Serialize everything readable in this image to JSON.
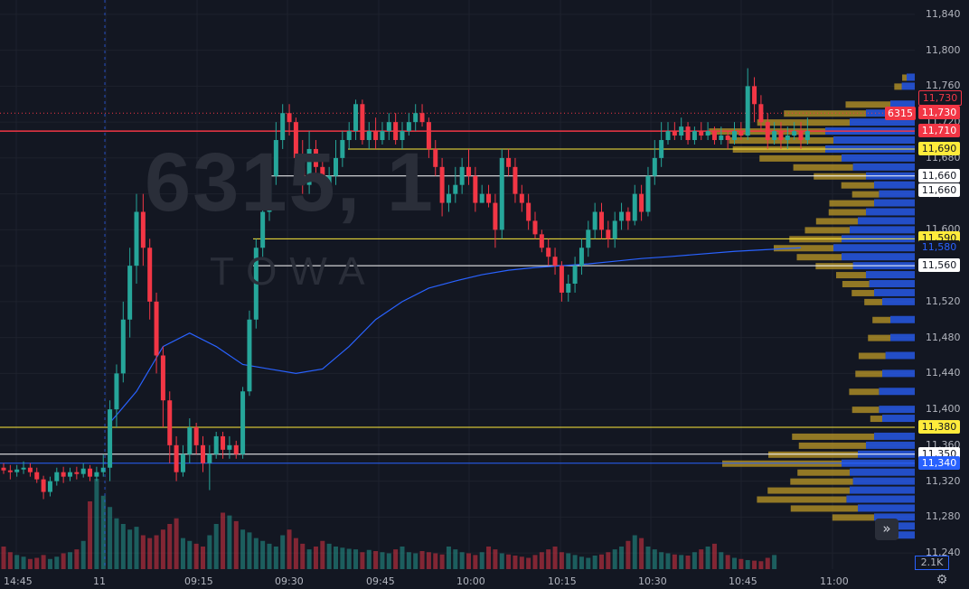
{
  "watermark": {
    "symbol": "6315, 1",
    "name": "TOWA"
  },
  "price_axis": {
    "ticks": [
      "11,840",
      "11,800",
      "11,760",
      "11,720",
      "11,680",
      "11,640",
      "11,600",
      "11,560",
      "11,520",
      "11,480",
      "11,440",
      "11,400",
      "11,360",
      "11,320",
      "11,280",
      "11,240"
    ]
  },
  "time_axis": {
    "labels": [
      "14:45",
      "11",
      "09:15",
      "09:30",
      "09:45",
      "10:00",
      "10:15",
      "10:30",
      "10:45",
      "11:00"
    ]
  },
  "badges": [
    {
      "text": "11,730",
      "price": 11730,
      "bg": "#131722",
      "fg": "#f23645",
      "border": "#f23645"
    },
    {
      "text": "11,730",
      "price": 11730,
      "bg": "#f23645",
      "fg": "#ffffff"
    },
    {
      "text": "11,710",
      "price": 11710,
      "bg": "#f23645",
      "fg": "#ffffff"
    },
    {
      "text": "11,690",
      "price": 11690,
      "bg": "#ffeb3b",
      "fg": "#131722"
    },
    {
      "text": "11,660",
      "price": 11660,
      "bg": "#ffffff",
      "fg": "#131722"
    },
    {
      "text": "11,660",
      "price": 11660,
      "bg": "#ffffff",
      "fg": "#131722"
    },
    {
      "text": "11,590",
      "price": 11590,
      "bg": "#ffeb3b",
      "fg": "#131722"
    },
    {
      "text": "11,580",
      "price": 11580,
      "bg": "#131722",
      "fg": "#2962ff"
    },
    {
      "text": "11,560",
      "price": 11560,
      "bg": "#ffffff",
      "fg": "#131722"
    },
    {
      "text": "11,380",
      "price": 11380,
      "bg": "#ffeb3b",
      "fg": "#131722"
    },
    {
      "text": "11,350",
      "price": 11350,
      "bg": "#ffffff",
      "fg": "#131722"
    },
    {
      "text": "11,340",
      "price": 11340,
      "bg": "#2962ff",
      "fg": "#ffffff"
    }
  ],
  "last_price_tag": "6315",
  "volume_badge": "2.1K",
  "scroll_button": "»",
  "settings_icon": "gear-icon",
  "chart_data": {
    "type": "candlestick",
    "interval": "1 min",
    "ylim": [
      11222,
      11856
    ],
    "colors": {
      "up": "#26a69a",
      "down": "#f23645",
      "vwap": "#2962ff",
      "level_yellow": "#ffeb3b",
      "level_white": "#ffffff",
      "level_red": "#f23645",
      "level_blue": "#2962ff"
    },
    "levels": [
      {
        "price": 11730,
        "color": "#f23645",
        "style": "dotted"
      },
      {
        "price": 11710,
        "color": "#f23645",
        "style": "solid"
      },
      {
        "price": 11690,
        "color": "#ffeb3b",
        "style": "solid"
      },
      {
        "price": 11660,
        "color": "#ffffff",
        "style": "solid"
      },
      {
        "price": 11590,
        "color": "#ffeb3b",
        "style": "solid"
      },
      {
        "price": 11560,
        "color": "#ffffff",
        "style": "solid"
      },
      {
        "price": 11380,
        "color": "#ffeb3b",
        "style": "solid"
      },
      {
        "price": 11350,
        "color": "#ffffff",
        "style": "solid"
      },
      {
        "price": 11340,
        "color": "#2962ff",
        "style": "solid"
      }
    ],
    "candles": [
      [
        11335,
        11332,
        11340,
        11328
      ],
      [
        11332,
        11330,
        11338,
        11322
      ],
      [
        11330,
        11333,
        11338,
        11325
      ],
      [
        11333,
        11335,
        11342,
        11328
      ],
      [
        11335,
        11330,
        11340,
        11325
      ],
      [
        11330,
        11322,
        11335,
        11318
      ],
      [
        11322,
        11308,
        11326,
        11300
      ],
      [
        11308,
        11320,
        11325,
        11303
      ],
      [
        11320,
        11330,
        11335,
        11315
      ],
      [
        11330,
        11325,
        11336,
        11318
      ],
      [
        11325,
        11330,
        11335,
        11320
      ],
      [
        11330,
        11328,
        11336,
        11322
      ],
      [
        11328,
        11334,
        11340,
        11324
      ],
      [
        11334,
        11325,
        11338,
        11320
      ],
      [
        11325,
        11330,
        11336,
        11320
      ],
      [
        11330,
        11335,
        11350,
        11325
      ],
      [
        11335,
        11400,
        11410,
        11320
      ],
      [
        11400,
        11440,
        11450,
        11380
      ],
      [
        11440,
        11500,
        11520,
        11430
      ],
      [
        11500,
        11560,
        11580,
        11480
      ],
      [
        11560,
        11620,
        11640,
        11540
      ],
      [
        11620,
        11580,
        11640,
        11560
      ],
      [
        11580,
        11520,
        11590,
        11500
      ],
      [
        11520,
        11460,
        11530,
        11440
      ],
      [
        11460,
        11410,
        11470,
        11380
      ],
      [
        11410,
        11360,
        11420,
        11340
      ],
      [
        11360,
        11330,
        11370,
        11320
      ],
      [
        11330,
        11350,
        11360,
        11325
      ],
      [
        11350,
        11380,
        11390,
        11340
      ],
      [
        11380,
        11360,
        11385,
        11350
      ],
      [
        11360,
        11340,
        11370,
        11330
      ],
      [
        11340,
        11350,
        11360,
        11310
      ],
      [
        11350,
        11370,
        11375,
        11345
      ],
      [
        11370,
        11355,
        11375,
        11345
      ],
      [
        11355,
        11360,
        11370,
        11345
      ],
      [
        11360,
        11350,
        11365,
        11345
      ],
      [
        11350,
        11420,
        11425,
        11345
      ],
      [
        11420,
        11500,
        11510,
        11415
      ],
      [
        11500,
        11580,
        11590,
        11490
      ],
      [
        11580,
        11620,
        11630,
        11570
      ],
      [
        11620,
        11660,
        11670,
        11610
      ],
      [
        11660,
        11700,
        11720,
        11650
      ],
      [
        11700,
        11730,
        11740,
        11690
      ],
      [
        11730,
        11720,
        11740,
        11705
      ],
      [
        11720,
        11680,
        11725,
        11660
      ],
      [
        11680,
        11650,
        11700,
        11640
      ],
      [
        11650,
        11690,
        11710,
        11640
      ],
      [
        11690,
        11670,
        11700,
        11660
      ],
      [
        11670,
        11650,
        11680,
        11640
      ],
      [
        11650,
        11660,
        11670,
        11635
      ],
      [
        11660,
        11680,
        11700,
        11650
      ],
      [
        11680,
        11700,
        11710,
        11670
      ],
      [
        11700,
        11710,
        11720,
        11690
      ],
      [
        11710,
        11740,
        11745,
        11700
      ],
      [
        11740,
        11700,
        11745,
        11695
      ],
      [
        11700,
        11710,
        11720,
        11690
      ],
      [
        11710,
        11700,
        11725,
        11690
      ],
      [
        11700,
        11710,
        11720,
        11695
      ],
      [
        11710,
        11720,
        11730,
        11700
      ],
      [
        11720,
        11700,
        11730,
        11695
      ],
      [
        11700,
        11710,
        11720,
        11690
      ],
      [
        11710,
        11720,
        11730,
        11705
      ],
      [
        11720,
        11730,
        11740,
        11710
      ],
      [
        11730,
        11720,
        11740,
        11715
      ],
      [
        11720,
        11690,
        11725,
        11680
      ],
      [
        11690,
        11670,
        11700,
        11660
      ],
      [
        11670,
        11630,
        11680,
        11615
      ],
      [
        11630,
        11640,
        11650,
        11620
      ],
      [
        11640,
        11650,
        11670,
        11630
      ],
      [
        11650,
        11670,
        11680,
        11640
      ],
      [
        11670,
        11660,
        11690,
        11650
      ],
      [
        11660,
        11630,
        11670,
        11620
      ],
      [
        11630,
        11640,
        11650,
        11630
      ],
      [
        11640,
        11630,
        11650,
        11625
      ],
      [
        11630,
        11600,
        11640,
        11580
      ],
      [
        11600,
        11680,
        11690,
        11590
      ],
      [
        11680,
        11670,
        11690,
        11660
      ],
      [
        11670,
        11640,
        11680,
        11630
      ],
      [
        11640,
        11630,
        11650,
        11620
      ],
      [
        11630,
        11610,
        11640,
        11600
      ],
      [
        11610,
        11595,
        11620,
        11590
      ],
      [
        11595,
        11580,
        11600,
        11575
      ],
      [
        11580,
        11570,
        11590,
        11560
      ],
      [
        11570,
        11560,
        11580,
        11550
      ],
      [
        11560,
        11530,
        11565,
        11520
      ],
      [
        11530,
        11540,
        11550,
        11520
      ],
      [
        11540,
        11560,
        11570,
        11530
      ],
      [
        11560,
        11580,
        11590,
        11550
      ],
      [
        11580,
        11600,
        11610,
        11570
      ],
      [
        11600,
        11620,
        11630,
        11590
      ],
      [
        11620,
        11600,
        11630,
        11590
      ],
      [
        11600,
        11590,
        11610,
        11580
      ],
      [
        11590,
        11610,
        11620,
        11580
      ],
      [
        11610,
        11620,
        11630,
        11600
      ],
      [
        11620,
        11610,
        11625,
        11600
      ],
      [
        11610,
        11640,
        11650,
        11605
      ],
      [
        11640,
        11620,
        11650,
        11610
      ],
      [
        11620,
        11660,
        11670,
        11615
      ],
      [
        11660,
        11680,
        11700,
        11650
      ],
      [
        11680,
        11700,
        11720,
        11670
      ]
    ],
    "tail_candles": [
      [
        11700,
        11710,
        11720,
        11695
      ],
      [
        11710,
        11705,
        11720,
        11700
      ],
      [
        11705,
        11715,
        11725,
        11700
      ],
      [
        11715,
        11700,
        11720,
        11695
      ],
      [
        11700,
        11710,
        11715,
        11695
      ],
      [
        11710,
        11705,
        11720,
        11700
      ],
      [
        11705,
        11710,
        11720,
        11700
      ],
      [
        11710,
        11700,
        11715,
        11695
      ],
      [
        11700,
        11705,
        11715,
        11695
      ],
      [
        11705,
        11700,
        11710,
        11690
      ],
      [
        11700,
        11710,
        11720,
        11695
      ],
      [
        11710,
        11705,
        11720,
        11700
      ],
      [
        11705,
        11760,
        11780,
        11700
      ],
      [
        11760,
        11740,
        11770,
        11720
      ],
      [
        11740,
        11720,
        11750,
        11710
      ],
      [
        11720,
        11700,
        11730,
        11690
      ],
      [
        11700,
        11710,
        11720,
        11695
      ],
      [
        11710,
        11700,
        11720,
        11690
      ],
      [
        11700,
        11705,
        11715,
        11690
      ],
      [
        11705,
        11710,
        11720,
        11700
      ],
      [
        11710,
        11700,
        11720,
        11690
      ],
      [
        11700,
        11710,
        11725,
        11695
      ]
    ],
    "vwap": [
      [
        16,
        11385
      ],
      [
        20,
        11420
      ],
      [
        24,
        11470
      ],
      [
        28,
        11485
      ],
      [
        32,
        11470
      ],
      [
        36,
        11450
      ],
      [
        40,
        11445
      ],
      [
        44,
        11440
      ],
      [
        48,
        11445
      ],
      [
        52,
        11470
      ],
      [
        56,
        11500
      ],
      [
        60,
        11520
      ],
      [
        64,
        11535
      ],
      [
        68,
        11543
      ],
      [
        72,
        11550
      ],
      [
        76,
        11555
      ],
      [
        80,
        11558
      ],
      [
        84,
        11560
      ],
      [
        88,
        11562
      ],
      [
        92,
        11565
      ],
      [
        96,
        11568
      ],
      [
        100,
        11570
      ],
      [
        110,
        11576
      ],
      [
        120,
        11580
      ]
    ],
    "volume": [
      40,
      30,
      25,
      22,
      18,
      20,
      25,
      18,
      22,
      28,
      30,
      35,
      50,
      120,
      160,
      130,
      110,
      90,
      80,
      70,
      75,
      60,
      55,
      60,
      70,
      80,
      90,
      55,
      50,
      45,
      40,
      60,
      80,
      100,
      95,
      85,
      70,
      65,
      55,
      50,
      45,
      40,
      60,
      70,
      55,
      45,
      35,
      40,
      50,
      45,
      40,
      38,
      36,
      35,
      30,
      34,
      32,
      30,
      28,
      35,
      40,
      30,
      28,
      32,
      30,
      28,
      26,
      40,
      35,
      30,
      28,
      25,
      30,
      40,
      35,
      28,
      26,
      24,
      22,
      20,
      25,
      30,
      35,
      40,
      30,
      28,
      25,
      22,
      20,
      24,
      26,
      30,
      35,
      40,
      50,
      60,
      55,
      40,
      35,
      30,
      28,
      26,
      25,
      24,
      30,
      35,
      40,
      45,
      30,
      25,
      20,
      18,
      16,
      15,
      14,
      20,
      25
    ],
    "volume_profile": [
      [
        11770,
        0.05,
        0.03
      ],
      [
        11760,
        0.08,
        0.05
      ],
      [
        11740,
        0.15,
        0.3
      ],
      [
        11730,
        0.3,
        0.55
      ],
      [
        11720,
        0.4,
        0.62
      ],
      [
        11710,
        0.55,
        0.78
      ],
      [
        11700,
        0.5,
        0.7
      ],
      [
        11690,
        0.55,
        0.62
      ],
      [
        11680,
        0.45,
        0.55
      ],
      [
        11670,
        0.38,
        0.4
      ],
      [
        11660,
        0.3,
        0.35
      ],
      [
        11650,
        0.25,
        0.22
      ],
      [
        11640,
        0.22,
        0.18
      ],
      [
        11630,
        0.25,
        0.3
      ],
      [
        11620,
        0.3,
        0.25
      ],
      [
        11610,
        0.35,
        0.28
      ],
      [
        11600,
        0.4,
        0.3
      ],
      [
        11590,
        0.45,
        0.35
      ],
      [
        11580,
        0.5,
        0.4
      ],
      [
        11570,
        0.45,
        0.3
      ],
      [
        11560,
        0.38,
        0.25
      ],
      [
        11550,
        0.3,
        0.2
      ],
      [
        11540,
        0.28,
        0.18
      ],
      [
        11530,
        0.25,
        0.15
      ],
      [
        11520,
        0.2,
        0.12
      ],
      [
        11500,
        0.15,
        0.12
      ],
      [
        11480,
        0.15,
        0.15
      ],
      [
        11460,
        0.18,
        0.18
      ],
      [
        11440,
        0.2,
        0.18
      ],
      [
        11420,
        0.22,
        0.2
      ],
      [
        11400,
        0.22,
        0.18
      ],
      [
        11390,
        0.2,
        0.08
      ],
      [
        11370,
        0.25,
        0.55
      ],
      [
        11360,
        0.3,
        0.45
      ],
      [
        11350,
        0.35,
        0.6
      ],
      [
        11340,
        0.45,
        0.8
      ],
      [
        11330,
        0.4,
        0.35
      ],
      [
        11320,
        0.38,
        0.42
      ],
      [
        11310,
        0.4,
        0.55
      ],
      [
        11300,
        0.42,
        0.6
      ],
      [
        11290,
        0.35,
        0.45
      ],
      [
        11280,
        0.25,
        0.28
      ],
      [
        11270,
        0.15,
        0.1
      ],
      [
        11260,
        0.1,
        0.08
      ]
    ]
  }
}
